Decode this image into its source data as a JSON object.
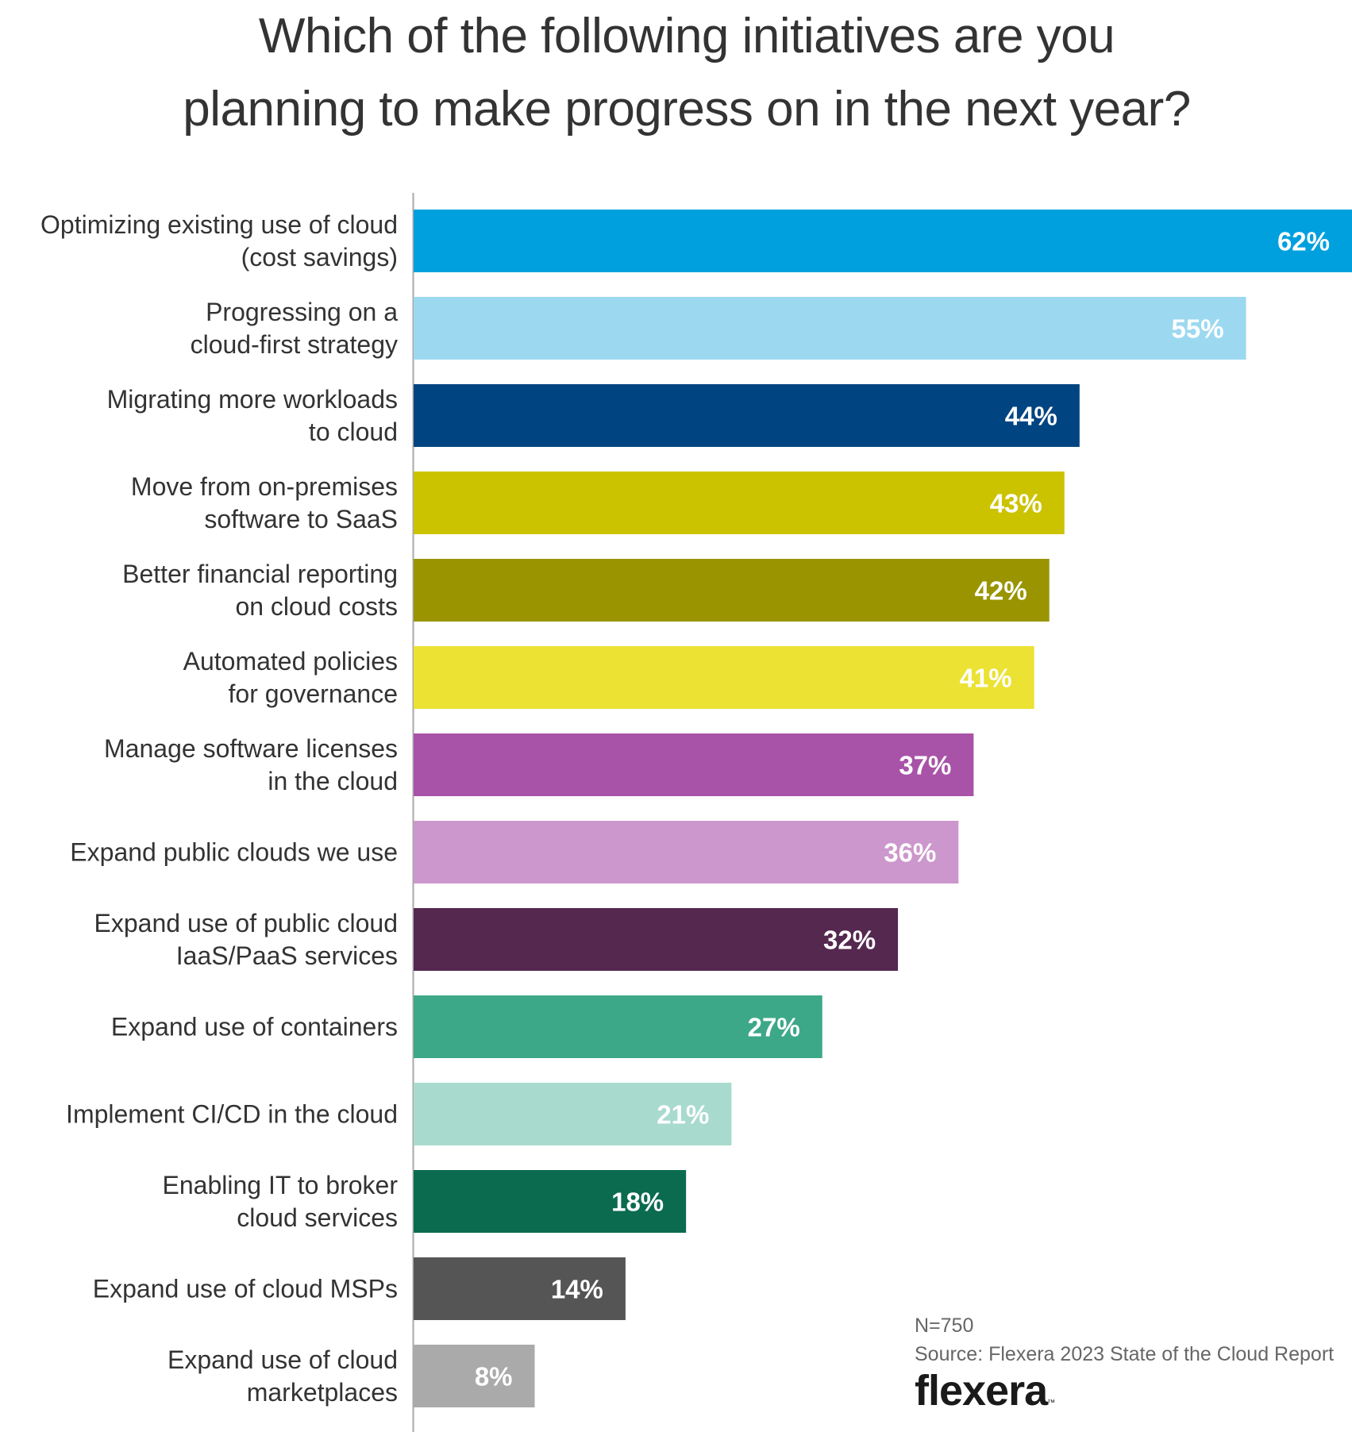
{
  "chart_data": {
    "type": "bar",
    "orientation": "horizontal",
    "title": "Which of the following initiatives are you planning to make progress on in the next year?",
    "title_lines": [
      "Which of the following initiatives are you",
      "planning to make progress on in the next year?"
    ],
    "xlabel": "",
    "ylabel": "",
    "unit": "%",
    "xlim": [
      0,
      62
    ],
    "grid": false,
    "legend": "none",
    "categories": [
      [
        "Optimizing existing use of cloud",
        "(cost savings)"
      ],
      [
        "Progressing on a",
        "cloud-first strategy"
      ],
      [
        "Migrating more workloads",
        "to cloud"
      ],
      [
        "Move from on-premises",
        "software to SaaS"
      ],
      [
        "Better financial reporting",
        "on cloud costs"
      ],
      [
        "Automated policies",
        "for  governance"
      ],
      [
        "Manage software licenses",
        "in the cloud"
      ],
      [
        "Expand public clouds we use"
      ],
      [
        "Expand use of public cloud",
        "IaaS/PaaS services"
      ],
      [
        "Expand use of containers"
      ],
      [
        "Implement CI/CD in the cloud"
      ],
      [
        "Enabling IT to broker",
        "cloud services"
      ],
      [
        "Expand use of cloud MSPs"
      ],
      [
        "Expand use of cloud",
        "marketplaces"
      ]
    ],
    "values": [
      62,
      55,
      44,
      43,
      42,
      41,
      37,
      36,
      32,
      27,
      21,
      18,
      14,
      8
    ],
    "value_labels": [
      "62%",
      "55%",
      "44%",
      "43%",
      "42%",
      "41%",
      "37%",
      "36%",
      "32%",
      "27%",
      "21%",
      "18%",
      "14%",
      "8%"
    ],
    "colors": [
      "#00a0df",
      "#9cd9f0",
      "#004481",
      "#cbc300",
      "#999400",
      "#ebe233",
      "#a853a8",
      "#cc97cc",
      "#55284f",
      "#3da888",
      "#a8dace",
      "#0a6b4f",
      "#555555",
      "#aaaaaa"
    ]
  },
  "footer": {
    "sample_size": "N=750",
    "source": "Source: Flexera 2023 State of the Cloud Report"
  },
  "logo": {
    "text": "flexera",
    "trademark": "™"
  }
}
